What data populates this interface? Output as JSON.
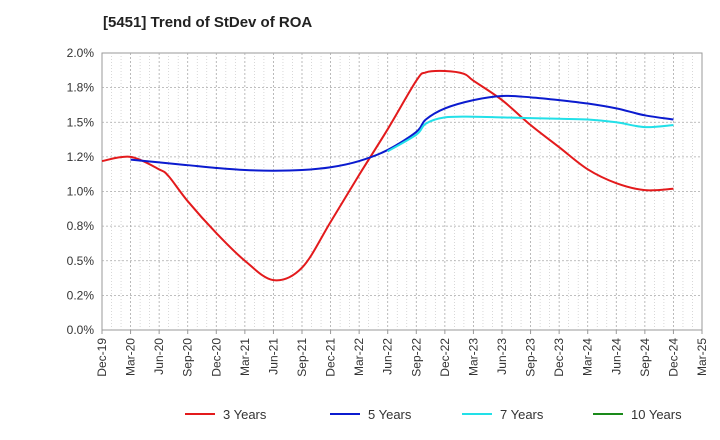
{
  "chart_data": {
    "type": "line",
    "title": "[5451]  Trend of StDev of ROA",
    "xlabel": "",
    "ylabel": "",
    "x_ticks": [
      "Dec-19",
      "Mar-20",
      "Jun-20",
      "Sep-20",
      "Dec-20",
      "Mar-21",
      "Jun-21",
      "Sep-21",
      "Dec-21",
      "Mar-22",
      "Jun-22",
      "Sep-22",
      "Dec-22",
      "Mar-23",
      "Jun-23",
      "Sep-23",
      "Dec-23",
      "Mar-24",
      "Jun-24",
      "Sep-24",
      "Dec-24",
      "Mar-25"
    ],
    "y_ticks": [
      "0.0%",
      "0.2%",
      "0.5%",
      "0.8%",
      "1.0%",
      "1.2%",
      "1.5%",
      "1.8%",
      "2.0%"
    ],
    "ylim": [
      0,
      2.0
    ],
    "grid": true,
    "legend_position": "bottom",
    "series": [
      {
        "name": "3 Years",
        "color": "#e31a1c",
        "points": [
          [
            "Dec-19",
            1.22
          ],
          [
            "Mar-20",
            1.25
          ],
          [
            "Jun-20",
            1.16
          ],
          [
            "Jul-20",
            1.11
          ],
          [
            "Sep-20",
            0.93
          ],
          [
            "Dec-20",
            0.7
          ],
          [
            "Mar-21",
            0.5
          ],
          [
            "Jun-21",
            0.36
          ],
          [
            "Sep-21",
            0.45
          ],
          [
            "Dec-21",
            0.78
          ],
          [
            "Mar-22",
            1.12
          ],
          [
            "Jun-22",
            1.45
          ],
          [
            "Sep-22",
            1.8
          ],
          [
            "Oct-22",
            1.86
          ],
          [
            "Dec-22",
            1.87
          ],
          [
            "Feb-23",
            1.85
          ],
          [
            "Mar-23",
            1.8
          ],
          [
            "Jun-23",
            1.66
          ],
          [
            "Sep-23",
            1.48
          ],
          [
            "Dec-23",
            1.32
          ],
          [
            "Mar-24",
            1.16
          ],
          [
            "Jun-24",
            1.06
          ],
          [
            "Sep-24",
            1.01
          ],
          [
            "Dec-24",
            1.02
          ]
        ]
      },
      {
        "name": "5 Years",
        "color": "#0b1bcf",
        "points": [
          [
            "Mar-20",
            1.23
          ],
          [
            "Jun-20",
            1.21
          ],
          [
            "Sep-20",
            1.19
          ],
          [
            "Dec-20",
            1.17
          ],
          [
            "Mar-21",
            1.155
          ],
          [
            "Jun-21",
            1.15
          ],
          [
            "Sep-21",
            1.155
          ],
          [
            "Dec-21",
            1.175
          ],
          [
            "Mar-22",
            1.22
          ],
          [
            "Jun-22",
            1.3
          ],
          [
            "Sep-22",
            1.43
          ],
          [
            "Oct-22",
            1.52
          ],
          [
            "Dec-22",
            1.6
          ],
          [
            "Mar-23",
            1.66
          ],
          [
            "Jun-23",
            1.69
          ],
          [
            "Sep-23",
            1.68
          ],
          [
            "Dec-23",
            1.66
          ],
          [
            "Mar-24",
            1.635
          ],
          [
            "Jun-24",
            1.6
          ],
          [
            "Sep-24",
            1.55
          ],
          [
            "Dec-24",
            1.52
          ]
        ]
      },
      {
        "name": "7 Years",
        "color": "#22e0e8",
        "points": [
          [
            "Jun-22",
            1.29
          ],
          [
            "Sep-22",
            1.41
          ],
          [
            "Oct-22",
            1.49
          ],
          [
            "Dec-22",
            1.535
          ],
          [
            "Mar-23",
            1.54
          ],
          [
            "Jun-23",
            1.535
          ],
          [
            "Sep-23",
            1.53
          ],
          [
            "Dec-23",
            1.525
          ],
          [
            "Mar-24",
            1.52
          ],
          [
            "Jun-24",
            1.5
          ],
          [
            "Sep-24",
            1.465
          ],
          [
            "Dec-24",
            1.48
          ]
        ]
      },
      {
        "name": "10 Years",
        "color": "#1a8a1a",
        "points": []
      }
    ]
  }
}
